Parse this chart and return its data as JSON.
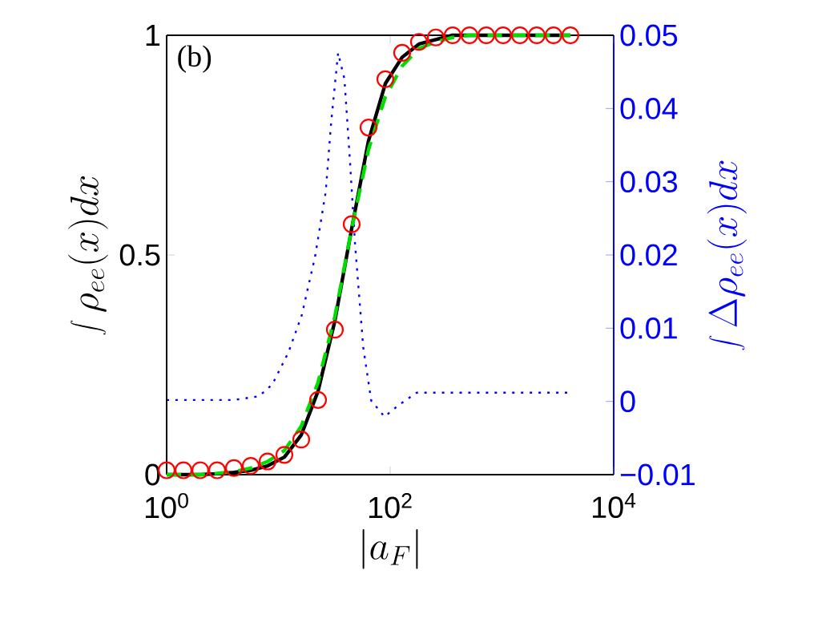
{
  "chart_data": {
    "type": "line",
    "xlabel": "|a_{F}|",
    "ylabel": "\\int \\rho_{ee}(x)dx",
    "y2label": "\\int \\Delta\\rho_{ee}(x)dx",
    "annotations": [
      "(b)"
    ],
    "log": "x",
    "grid": false,
    "xlim": [
      1,
      10000
    ],
    "xticks": [
      {
        "value": 1,
        "label": "10$^{0}$"
      },
      {
        "value": 100,
        "label": "10$^{2}$"
      },
      {
        "value": 10000,
        "label": "10$^{4}$"
      }
    ],
    "ylim": [
      0,
      1
    ],
    "yticks": [
      0,
      0.5,
      1
    ],
    "y2lim": [
      -0.01,
      0.05
    ],
    "y2ticks": [
      {
        "value": -0.01,
        "label": "−0.01"
      },
      0,
      0.01,
      0.02,
      0.03,
      0.04,
      0.05
    ],
    "series": [
      {
        "color": "#0000ff",
        "axis": "y2",
        "line_style": "dotted",
        "marker": "none",
        "x": [
          1,
          2,
          4,
          6.7,
          8.8,
          12.3,
          16.2,
          21.3,
          26.5,
          29.6,
          34.2,
          39,
          43.6,
          48.6,
          57.4,
          67.7,
          89,
          117,
          173,
          4096
        ],
        "values": [
          0.0002,
          0.0002,
          0.0002,
          0.0007,
          0.0023,
          0.0067,
          0.0118,
          0.0198,
          0.0286,
          0.038,
          0.0476,
          0.044,
          0.033,
          0.0213,
          0.0074,
          0.0001,
          -0.0021,
          -0.0006,
          0.0012,
          0.0012
        ]
      },
      {
        "color": "#000000",
        "line_style": "solid",
        "marker": "none",
        "x": [
          1,
          1.414,
          2,
          2.828,
          4,
          5.657,
          8,
          11.31,
          16,
          22.63,
          32,
          45.25,
          64,
          90.51,
          128,
          181,
          256,
          362,
          512,
          724.1,
          1024,
          1448,
          2048,
          2896,
          4096
        ],
        "values": [
          0,
          0,
          0,
          0.002,
          0.005,
          0.01,
          0.02,
          0.04,
          0.09,
          0.19,
          0.35,
          0.56,
          0.76,
          0.89,
          0.95,
          0.98,
          0.99,
          1,
          1,
          1,
          1,
          1,
          1,
          1,
          1
        ]
      },
      {
        "color": "#00dd00",
        "line_style": "dashed",
        "marker": "none",
        "x": [
          1,
          1.414,
          2,
          2.828,
          4,
          5.657,
          8,
          11.31,
          16,
          22.63,
          32,
          45.25,
          64,
          90.51,
          128,
          181,
          256,
          362,
          512,
          724.1,
          1024,
          1448,
          2048,
          2896,
          4096
        ],
        "values": [
          0,
          0,
          0,
          0.003,
          0.007,
          0.015,
          0.03,
          0.055,
          0.11,
          0.21,
          0.36,
          0.56,
          0.74,
          0.86,
          0.93,
          0.97,
          0.985,
          0.995,
          1,
          1,
          1,
          1,
          1,
          1,
          1
        ]
      },
      {
        "type": "scatter",
        "color": "#ff0000",
        "marker": "circle",
        "x": [
          1,
          1.414,
          2,
          2.828,
          4,
          5.657,
          8,
          11.31,
          16,
          22.63,
          32,
          45.25,
          64,
          90.51,
          128,
          181,
          256,
          362,
          512,
          724.1,
          1024,
          1448,
          2048,
          2896,
          4096
        ],
        "values": [
          0.01,
          0.01,
          0.01,
          0.01,
          0.015,
          0.02,
          0.03,
          0.045,
          0.08,
          0.17,
          0.33,
          0.57,
          0.79,
          0.9,
          0.96,
          0.985,
          0.995,
          1,
          1,
          1,
          1,
          1,
          1,
          1,
          1
        ]
      }
    ]
  }
}
